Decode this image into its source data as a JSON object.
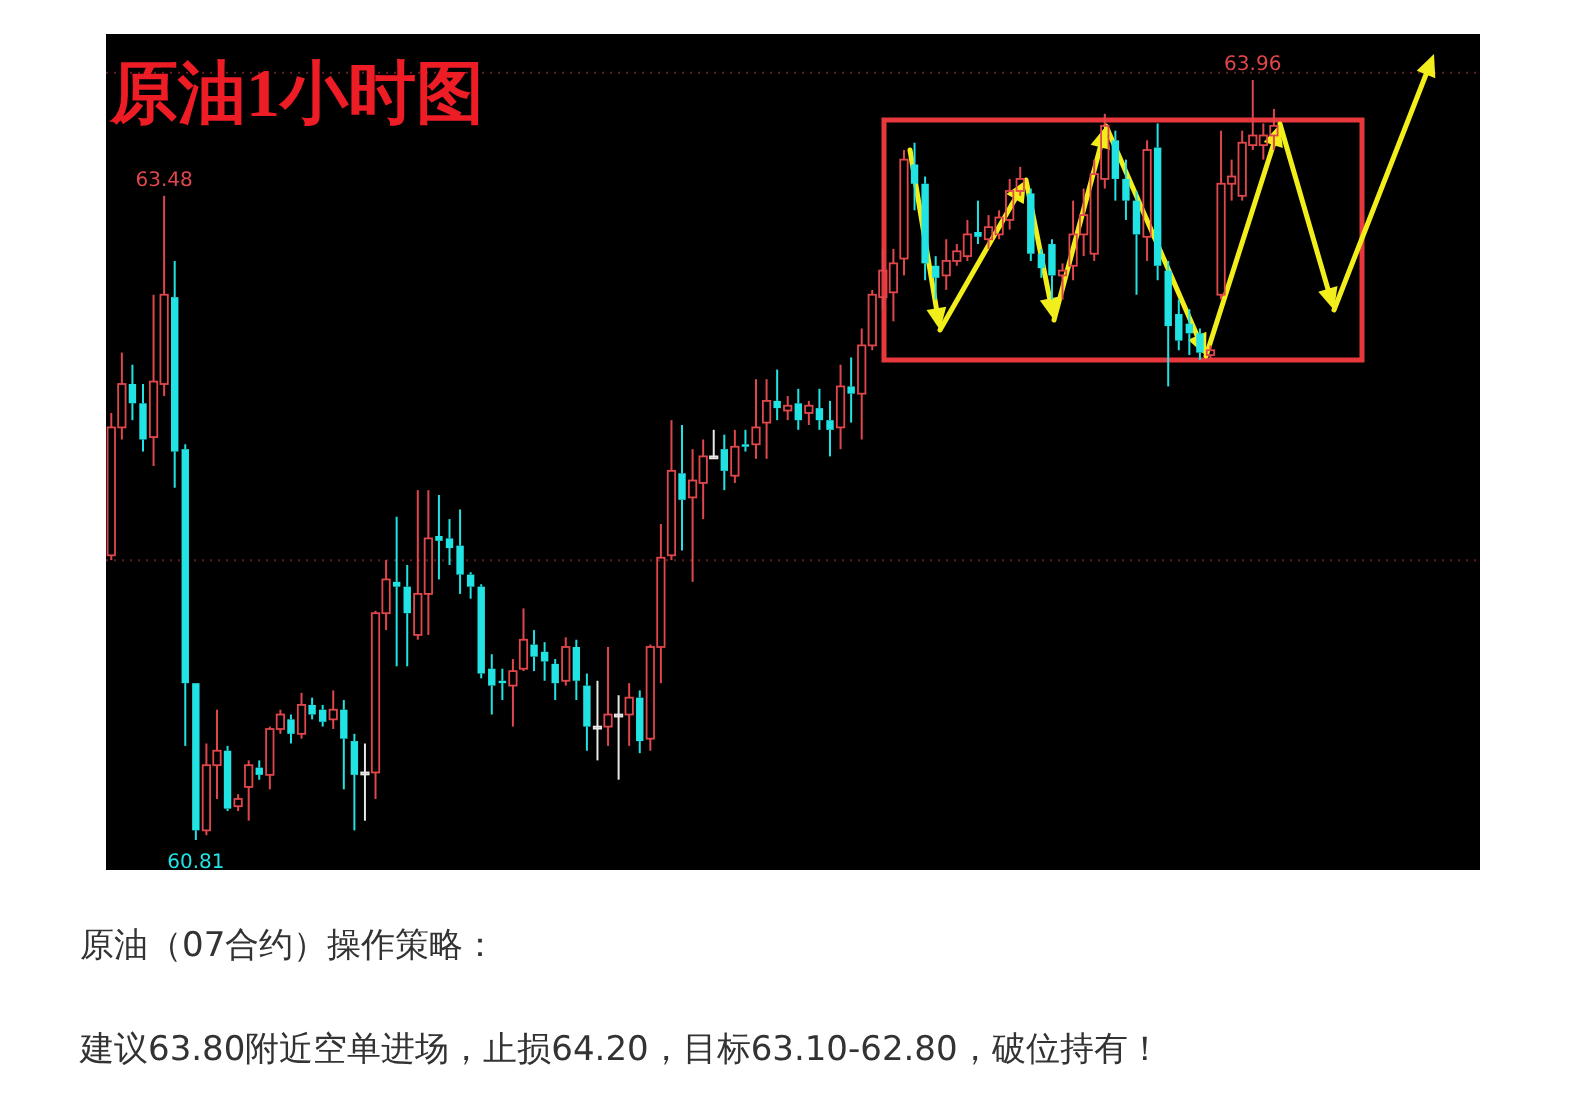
{
  "chart_data": {
    "type": "candlestick",
    "title": "原油1小时图",
    "categories": [
      null,
      null,
      null,
      null,
      null,
      null,
      null,
      null,
      null,
      null,
      null,
      null,
      null,
      null,
      null,
      null,
      null,
      null,
      null,
      null,
      null,
      null,
      null,
      null,
      null,
      null,
      null,
      null,
      null,
      null,
      null,
      null,
      null,
      null,
      null,
      null,
      null,
      null,
      null,
      null,
      null,
      null,
      null,
      null,
      null,
      null,
      null,
      null,
      null,
      null,
      null,
      null,
      null,
      null,
      null,
      null,
      null,
      null,
      null,
      null,
      null,
      null,
      null,
      null,
      null,
      null,
      null,
      null,
      null,
      null,
      null,
      null,
      null,
      null,
      null,
      null,
      null,
      null,
      null,
      null,
      null,
      null,
      null,
      null,
      null,
      null,
      null,
      null,
      null,
      null,
      null,
      null,
      null,
      null,
      null,
      null,
      null,
      null,
      null,
      null,
      null,
      null,
      null,
      null,
      null,
      null,
      null,
      null,
      null,
      null,
      null,
      null,
      null,
      null,
      null,
      null,
      null,
      null,
      null,
      null,
      null,
      null,
      null,
      null,
      null,
      null,
      null,
      null,
      null,
      null
    ],
    "ohlc": [
      [
        61.99,
        62.58,
        61.97,
        62.52
      ],
      [
        62.52,
        62.83,
        62.47,
        62.7
      ],
      [
        62.7,
        62.78,
        62.55,
        62.62
      ],
      [
        62.62,
        62.7,
        62.42,
        62.47
      ],
      [
        62.48,
        63.07,
        62.36,
        62.71
      ],
      [
        62.7,
        63.48,
        62.65,
        63.07
      ],
      [
        63.06,
        63.21,
        62.27,
        62.42
      ],
      [
        62.43,
        62.45,
        61.2,
        61.46
      ],
      [
        61.46,
        61.46,
        60.81,
        60.85
      ],
      [
        60.85,
        61.21,
        60.83,
        61.12
      ],
      [
        61.12,
        61.35,
        60.98,
        61.18
      ],
      [
        61.18,
        61.2,
        60.93,
        60.94
      ],
      [
        60.95,
        61.0,
        60.93,
        60.98
      ],
      [
        61.03,
        61.14,
        60.89,
        61.12
      ],
      [
        61.11,
        61.14,
        61.06,
        61.08
      ],
      [
        61.08,
        61.28,
        61.02,
        61.27
      ],
      [
        61.27,
        61.35,
        61.25,
        61.33
      ],
      [
        61.31,
        61.33,
        61.21,
        61.25
      ],
      [
        61.25,
        61.42,
        61.23,
        61.37
      ],
      [
        61.37,
        61.4,
        61.31,
        61.33
      ],
      [
        61.35,
        61.37,
        61.28,
        61.3
      ],
      [
        61.31,
        61.43,
        61.27,
        61.35
      ],
      [
        61.35,
        61.39,
        61.02,
        61.23
      ],
      [
        61.22,
        61.25,
        60.85,
        61.08
      ],
      [
        61.09,
        61.21,
        60.89,
        61.09
      ],
      [
        61.09,
        61.76,
        60.98,
        61.75
      ],
      [
        61.75,
        61.97,
        61.68,
        61.89
      ],
      [
        61.88,
        62.15,
        61.53,
        61.86
      ],
      [
        61.86,
        61.95,
        61.53,
        61.75
      ],
      [
        61.66,
        62.26,
        61.64,
        61.83
      ],
      [
        61.83,
        62.26,
        61.66,
        62.06
      ],
      [
        62.07,
        62.24,
        61.89,
        62.05
      ],
      [
        62.06,
        62.14,
        61.95,
        62.02
      ],
      [
        62.03,
        62.18,
        61.83,
        61.91
      ],
      [
        61.91,
        61.92,
        61.81,
        61.86
      ],
      [
        61.86,
        61.87,
        61.48,
        61.5
      ],
      [
        61.52,
        61.58,
        61.33,
        61.45
      ],
      [
        61.47,
        61.52,
        61.39,
        61.46
      ],
      [
        61.45,
        61.56,
        61.28,
        61.51
      ],
      [
        61.52,
        61.77,
        61.51,
        61.64
      ],
      [
        61.62,
        61.68,
        61.51,
        61.57
      ],
      [
        61.59,
        61.63,
        61.47,
        61.55
      ],
      [
        61.54,
        61.56,
        61.39,
        61.46
      ],
      [
        61.47,
        61.65,
        61.45,
        61.61
      ],
      [
        61.61,
        61.64,
        61.39,
        61.47
      ],
      [
        61.45,
        61.5,
        61.18,
        61.28
      ],
      [
        61.28,
        61.47,
        61.14,
        61.28
      ],
      [
        61.28,
        61.61,
        61.2,
        61.33
      ],
      [
        61.33,
        61.41,
        61.06,
        61.33
      ],
      [
        61.33,
        61.46,
        61.2,
        61.4
      ],
      [
        61.4,
        61.43,
        61.17,
        61.22
      ],
      [
        61.23,
        61.62,
        61.18,
        61.61
      ],
      [
        61.61,
        62.12,
        61.46,
        61.98
      ],
      [
        61.99,
        62.55,
        61.97,
        62.34
      ],
      [
        62.33,
        62.53,
        62.01,
        62.22
      ],
      [
        62.23,
        62.43,
        61.88,
        62.3
      ],
      [
        62.29,
        62.47,
        62.14,
        62.4
      ],
      [
        62.4,
        62.51,
        62.39,
        62.4
      ],
      [
        62.43,
        62.49,
        62.26,
        62.34
      ],
      [
        62.32,
        62.51,
        62.29,
        62.44
      ],
      [
        62.45,
        62.51,
        62.42,
        62.44
      ],
      [
        62.45,
        62.72,
        62.39,
        62.52
      ],
      [
        62.54,
        62.72,
        62.39,
        62.63
      ],
      [
        62.63,
        62.76,
        62.55,
        62.6
      ],
      [
        62.59,
        62.65,
        62.55,
        62.61
      ],
      [
        62.62,
        62.68,
        62.51,
        62.55
      ],
      [
        62.58,
        62.63,
        62.53,
        62.61
      ],
      [
        62.6,
        62.68,
        62.51,
        62.55
      ],
      [
        62.55,
        62.63,
        62.4,
        62.51
      ],
      [
        62.52,
        62.78,
        62.43,
        62.69
      ],
      [
        62.69,
        62.81,
        62.54,
        62.66
      ],
      [
        62.66,
        62.93,
        62.47,
        62.86
      ],
      [
        62.86,
        63.09,
        62.84,
        63.07
      ],
      [
        63.06,
        63.26,
        63.01,
        63.17
      ],
      [
        63.08,
        63.26,
        62.96,
        63.2
      ],
      [
        63.22,
        63.67,
        63.15,
        63.63
      ],
      [
        63.61,
        63.7,
        63.42,
        63.53
      ],
      [
        63.53,
        63.56,
        63.13,
        63.2
      ],
      [
        63.19,
        63.23,
        63.05,
        63.14
      ],
      [
        63.15,
        63.3,
        63.09,
        63.21
      ],
      [
        63.21,
        63.28,
        63.19,
        63.25
      ],
      [
        63.23,
        63.38,
        63.21,
        63.32
      ],
      [
        63.33,
        63.46,
        63.28,
        63.31
      ],
      [
        63.3,
        63.4,
        63.26,
        63.35
      ],
      [
        63.32,
        63.42,
        63.3,
        63.39
      ],
      [
        63.38,
        63.55,
        63.34,
        63.5
      ],
      [
        63.5,
        63.6,
        63.48,
        63.55
      ],
      [
        63.49,
        63.51,
        63.21,
        63.24
      ],
      [
        63.24,
        63.26,
        63.14,
        63.18
      ],
      [
        63.28,
        63.3,
        63.05,
        63.15
      ],
      [
        63.15,
        63.2,
        63.05,
        63.17
      ],
      [
        63.19,
        63.46,
        63.13,
        63.32
      ],
      [
        63.32,
        63.51,
        63.23,
        63.4
      ],
      [
        63.24,
        63.63,
        63.21,
        63.57
      ],
      [
        63.55,
        63.82,
        63.51,
        63.77
      ],
      [
        63.71,
        63.75,
        63.46,
        63.55
      ],
      [
        63.55,
        63.63,
        63.38,
        63.46
      ],
      [
        63.46,
        63.5,
        63.07,
        63.32
      ],
      [
        63.31,
        63.71,
        63.21,
        63.67
      ],
      [
        63.68,
        63.78,
        63.13,
        63.19
      ],
      [
        63.17,
        63.21,
        62.69,
        62.94
      ],
      [
        62.99,
        63.05,
        62.84,
        62.88
      ],
      [
        62.95,
        63.01,
        62.82,
        62.91
      ],
      [
        62.91,
        62.93,
        62.8,
        62.83
      ],
      [
        62.82,
        62.86,
        62.8,
        62.84
      ],
      [
        63.07,
        63.75,
        63.05,
        63.53
      ],
      [
        63.53,
        63.63,
        63.46,
        63.56
      ],
      [
        63.48,
        63.75,
        63.46,
        63.7
      ],
      [
        63.69,
        63.96,
        63.67,
        63.73
      ],
      [
        63.69,
        63.78,
        63.63,
        63.73
      ],
      [
        63.73,
        63.84,
        63.67,
        63.77
      ],
      null,
      null,
      null,
      null,
      null,
      null,
      null,
      null,
      null,
      null,
      null,
      null,
      null,
      null,
      null,
      null,
      null,
      null,
      null
    ],
    "ref_lines": [
      {
        "axis": "y",
        "value": 61.97,
        "color": "#6b1e1e",
        "line_style": "dotted"
      },
      {
        "axis": "y",
        "value": 63.99,
        "color": "#6b1e1e",
        "line_style": "dotted"
      }
    ],
    "annotations": [
      {
        "text": "63.48",
        "y": 63.48
      },
      {
        "text": "60.81",
        "y": 60.81
      },
      {
        "text": "63.96",
        "y": 63.96
      },
      "原油（07合约）操作策略：",
      "建议63.80附近空单进场，止损64.20，目标63.10-62.80，破位持有！"
    ]
  }
}
